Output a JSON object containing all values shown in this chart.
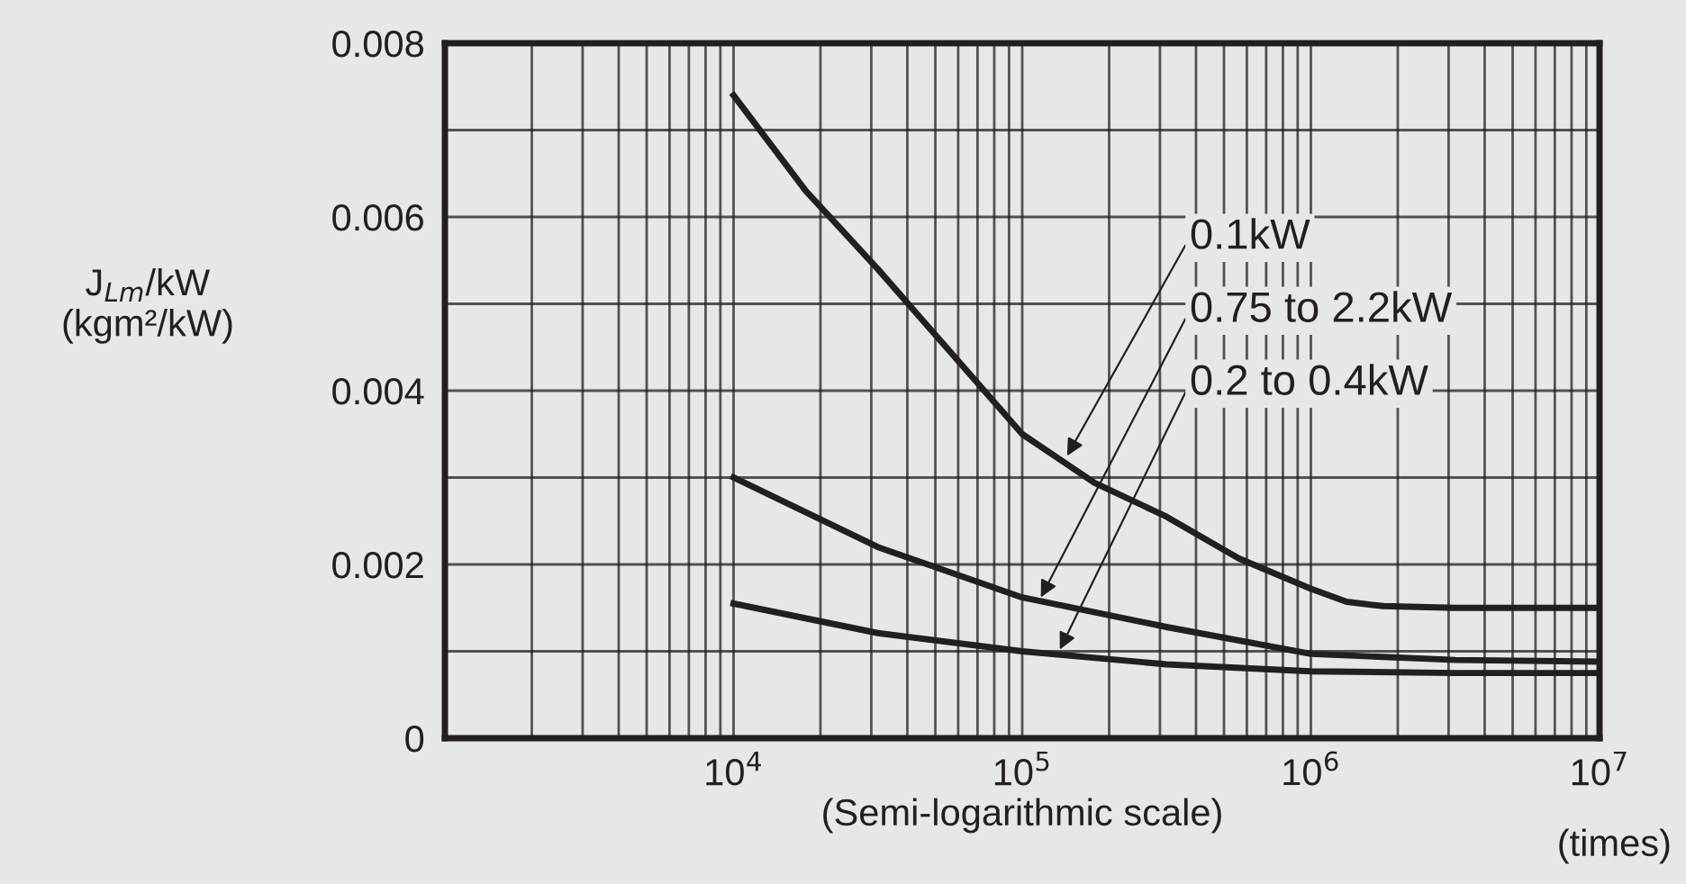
{
  "chart_data": {
    "type": "line",
    "xlabel": "(Semi-logarithmic scale)",
    "ylabel": "J$_{Lm}$/kW (kgm²/kW)",
    "log": "x",
    "grid": true,
    "line_style": "solid",
    "marker": "none",
    "xlim": [
      1000,
      10000000
    ],
    "xticks": [
      {
        "value": 10000,
        "label": "10$^{4}$"
      },
      {
        "value": 100000,
        "label": "10$^{5}$"
      },
      {
        "value": 1000000,
        "label": "10$^{6}$"
      },
      {
        "value": 10000000,
        "label": "10$^{7}$"
      }
    ],
    "ylim": [
      0,
      0.008
    ],
    "yticks": [
      0,
      {
        "value": 0.001,
        "label": null
      },
      0.002,
      {
        "value": 0.003,
        "label": null
      },
      0.004,
      {
        "value": 0.005,
        "label": null
      },
      0.006,
      {
        "value": 0.007,
        "label": null
      },
      0.008
    ],
    "series": [
      {
        "color": "#231f20",
        "x": [
          10000,
          17800,
          31600,
          56200,
          100000,
          178000,
          316000,
          562000,
          1000000,
          1330000,
          1780000,
          3160000,
          10000000
        ],
        "values": [
          0.0074,
          0.0063,
          0.0054,
          0.00445,
          0.0035,
          0.00294,
          0.00255,
          0.00207,
          0.00172,
          0.00157,
          0.00152,
          0.0015,
          0.0015
        ]
      },
      {
        "color": "#231f20",
        "x": [
          10000,
          31600,
          100000,
          316000,
          1000000,
          3160000,
          10000000
        ],
        "values": [
          0.003,
          0.0022,
          0.00162,
          0.00128,
          0.00097,
          0.0009,
          0.00088
        ]
      },
      {
        "color": "#231f20",
        "x": [
          10000,
          31600,
          100000,
          316000,
          1000000,
          3160000,
          10000000
        ],
        "values": [
          0.00155,
          0.00121,
          0.001,
          0.00085,
          0.00077,
          0.00075,
          0.00075
        ]
      }
    ],
    "annotations": [
      {
        "text": "0.1kW",
        "x": 143000,
        "y": 0.00325
      },
      {
        "text": "0.75 to 2.2kW",
        "x": 116000,
        "y": 0.00162
      },
      {
        "text": "0.2 to 0.4kW",
        "x": 135000,
        "y": 0.00102
      },
      "(times)"
    ]
  }
}
